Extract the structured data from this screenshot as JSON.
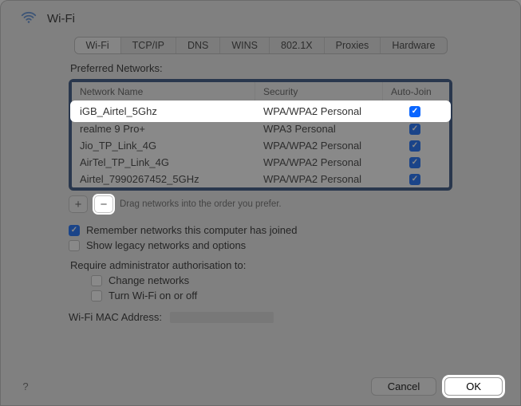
{
  "header": {
    "title": "Wi-Fi"
  },
  "tabs": [
    "Wi-Fi",
    "TCP/IP",
    "DNS",
    "WINS",
    "802.1X",
    "Proxies",
    "Hardware"
  ],
  "active_tab": 0,
  "preferred_label": "Preferred Networks:",
  "columns": {
    "name": "Network Name",
    "security": "Security",
    "autojoin": "Auto-Join"
  },
  "networks": [
    {
      "name": "iGB_Airtel_5Ghz",
      "security": "WPA/WPA2 Personal",
      "autojoin": true,
      "highlight": true
    },
    {
      "name": "realme 9 Pro+",
      "security": "WPA3 Personal",
      "autojoin": true,
      "highlight": false
    },
    {
      "name": "Jio_TP_Link_4G",
      "security": "WPA/WPA2 Personal",
      "autojoin": true,
      "highlight": false
    },
    {
      "name": "AirTel_TP_Link_4G",
      "security": "WPA/WPA2 Personal",
      "autojoin": true,
      "highlight": false
    },
    {
      "name": "Airtel_7990267452_5GHz",
      "security": "WPA/WPA2 Personal",
      "autojoin": true,
      "highlight": false
    }
  ],
  "drag_hint": "Drag networks into the order you prefer.",
  "plus_label": "+",
  "minus_label": "−",
  "options": {
    "remember": {
      "label": "Remember networks this computer has joined",
      "checked": true
    },
    "legacy": {
      "label": "Show legacy networks and options",
      "checked": false
    },
    "require_label": "Require administrator authorisation to:",
    "change": {
      "label": "Change networks",
      "checked": false
    },
    "toggle": {
      "label": "Turn Wi-Fi on or off",
      "checked": false
    }
  },
  "mac_label": "Wi-Fi MAC Address:",
  "buttons": {
    "cancel": "Cancel",
    "ok": "OK"
  },
  "help": "?",
  "colors": {
    "accent": "#0a66ff",
    "highlight_border": "#2b4a7a"
  }
}
